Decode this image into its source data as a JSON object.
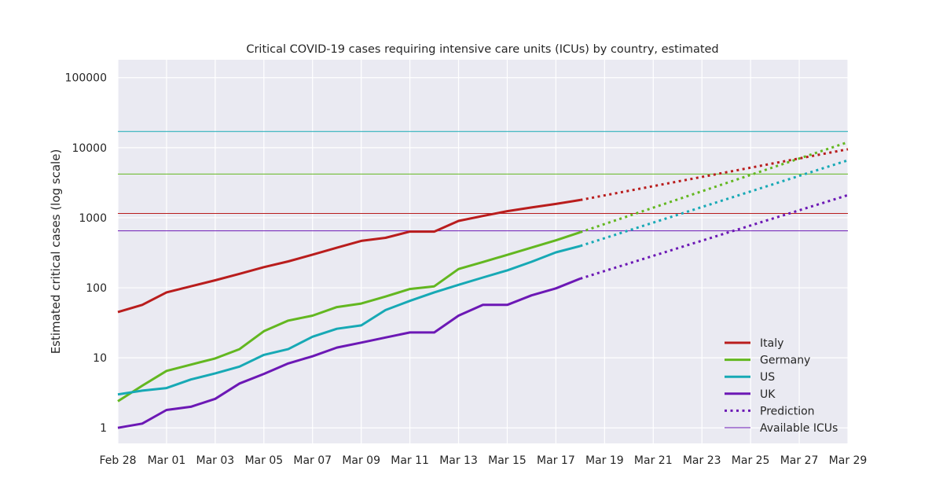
{
  "chart_data": {
    "type": "line",
    "title": "Critical COVID-19 cases requiring intensive care units (ICUs) by country, estimated",
    "xlabel": "",
    "ylabel": "Estimated critical cases (log scale)",
    "y_scale": "log",
    "ylim": [
      0.6,
      180000
    ],
    "y_ticks": [
      1,
      10,
      100,
      1000,
      10000,
      100000
    ],
    "y_tick_labels": [
      "1",
      "10",
      "100",
      "1000",
      "10000",
      "100000"
    ],
    "x_tick_labels": [
      "Feb 28",
      "Mar 01",
      "Mar 03",
      "Mar 05",
      "Mar 07",
      "Mar 09",
      "Mar 11",
      "Mar 13",
      "Mar 15",
      "Mar 17",
      "Mar 19",
      "Mar 21",
      "Mar 23",
      "Mar 25",
      "Mar 27",
      "Mar 29"
    ],
    "x": [
      "Feb 28",
      "Feb 29",
      "Mar 01",
      "Mar 02",
      "Mar 03",
      "Mar 04",
      "Mar 05",
      "Mar 06",
      "Mar 07",
      "Mar 08",
      "Mar 09",
      "Mar 10",
      "Mar 11",
      "Mar 12",
      "Mar 13",
      "Mar 14",
      "Mar 15",
      "Mar 16",
      "Mar 17",
      "Mar 18"
    ],
    "grid": true,
    "legend_position": "bottom-right",
    "series": [
      {
        "name": "Italy",
        "color": "#b91d1d",
        "values": [
          45,
          57,
          86,
          105,
          128,
          158,
          197,
          238,
          297,
          373,
          467,
          516,
          633,
          633,
          900,
          1060,
          1240,
          1400,
          1575,
          1790
        ]
      },
      {
        "name": "Germany",
        "color": "#63b720",
        "values": [
          2.4,
          4,
          6.5,
          8,
          9.8,
          13.3,
          24,
          34,
          40,
          53,
          59.5,
          75,
          96,
          105,
          185,
          233,
          295,
          375,
          475,
          620
        ]
      },
      {
        "name": "US",
        "color": "#17a9b5",
        "values": [
          3,
          3.4,
          3.7,
          4.9,
          6,
          7.5,
          11,
          13.3,
          20,
          26,
          29,
          48,
          65,
          86,
          110,
          140,
          177,
          235,
          320,
          395
        ]
      },
      {
        "name": "UK",
        "color": "#6c18b5",
        "values": [
          1,
          1.15,
          1.8,
          2,
          2.6,
          4.3,
          5.9,
          8.3,
          10.5,
          14,
          16.5,
          19.5,
          23,
          23,
          40,
          57,
          57,
          78,
          98,
          135
        ]
      }
    ],
    "predictions": [
      {
        "name": "Italy",
        "color": "#b91d1d",
        "x": [
          "Mar 18",
          "Mar 29"
        ],
        "values": [
          1790,
          9500
        ]
      },
      {
        "name": "Germany",
        "color": "#63b720",
        "x": [
          "Mar 18",
          "Mar 29"
        ],
        "values": [
          620,
          12000
        ]
      },
      {
        "name": "US",
        "color": "#17a9b5",
        "x": [
          "Mar 18",
          "Mar 29"
        ],
        "values": [
          395,
          6600
        ]
      },
      {
        "name": "UK",
        "color": "#6c18b5",
        "x": [
          "Mar 18",
          "Mar 29"
        ],
        "values": [
          135,
          2100
        ]
      }
    ],
    "icu_capacity": [
      {
        "name": "US",
        "color": "#17a9b5",
        "value": 17000
      },
      {
        "name": "Germany",
        "color": "#63b720",
        "value": 4200
      },
      {
        "name": "Italy",
        "color": "#b91d1d",
        "value": 1150
      },
      {
        "name": "UK",
        "color": "#6c18b5",
        "value": 650
      }
    ],
    "legend": [
      {
        "label": "Italy",
        "style": "solid",
        "color": "#b91d1d"
      },
      {
        "label": "Germany",
        "style": "solid",
        "color": "#63b720"
      },
      {
        "label": "US",
        "style": "solid",
        "color": "#17a9b5"
      },
      {
        "label": "UK",
        "style": "solid",
        "color": "#6c18b5"
      },
      {
        "label": "Prediction",
        "style": "dotted",
        "color": "#6c18b5"
      },
      {
        "label": "Available ICUs",
        "style": "thin",
        "color": "#6c18b5"
      }
    ]
  }
}
